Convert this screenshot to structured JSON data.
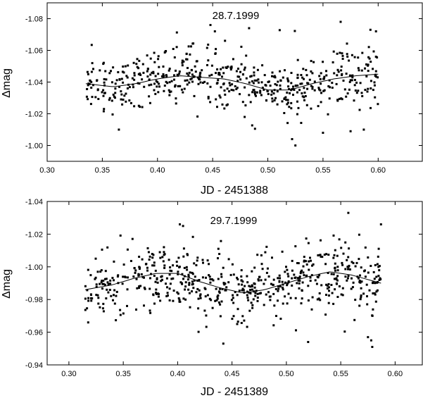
{
  "chart_data": [
    {
      "type": "scatter",
      "title": "28.7.1999",
      "xlabel": "JD - 2451388",
      "ylabel": "Δmag",
      "xlim": [
        0.3,
        0.64
      ],
      "ylim": [
        -0.99,
        -1.09
      ],
      "y_inverted": true,
      "xticks": [
        "0.30",
        "0.35",
        "0.40",
        "0.45",
        "0.50",
        "0.55",
        "0.60"
      ],
      "yticks": [
        "-1.00",
        "-1.02",
        "-1.04",
        "-1.06",
        "-1.08"
      ],
      "xtick_values": [
        0.3,
        0.35,
        0.4,
        0.45,
        0.5,
        0.55,
        0.6
      ],
      "ytick_values": [
        -1.0,
        -1.02,
        -1.04,
        -1.06,
        -1.08
      ],
      "scatter": {
        "x_range": [
          0.335,
          0.6
        ],
        "n_points": 560,
        "spread": 0.009,
        "outliers": [
          [
            0.365,
            -1.01
          ],
          [
            0.448,
            -1.076
          ],
          [
            0.452,
            -1.072
          ],
          [
            0.483,
            -1.074
          ],
          [
            0.522,
            -1.004
          ],
          [
            0.525,
            -1.0
          ],
          [
            0.55,
            -1.008
          ],
          [
            0.566,
            -1.078
          ],
          [
            0.593,
            -1.073
          ],
          [
            0.598,
            -1.072
          ],
          [
            0.587,
            -1.01
          ],
          [
            0.575,
            -1.009
          ]
        ]
      },
      "fit_curve": {
        "x": [
          0.335,
          0.36,
          0.38,
          0.4,
          0.42,
          0.44,
          0.46,
          0.48,
          0.5,
          0.52,
          0.54,
          0.56,
          0.58,
          0.6
        ],
        "y": [
          -1.039,
          -1.037,
          -1.039,
          -1.042,
          -1.044,
          -1.043,
          -1.042,
          -1.039,
          -1.035,
          -1.035,
          -1.039,
          -1.042,
          -1.044,
          -1.045
        ]
      }
    },
    {
      "type": "scatter",
      "title": "29.7.1999",
      "xlabel": "JD - 2451389",
      "ylabel": "Δmag",
      "xlim": [
        0.28,
        0.625
      ],
      "ylim": [
        -0.94,
        -1.04
      ],
      "y_inverted": true,
      "xticks": [
        "0.30",
        "0.35",
        "0.40",
        "0.45",
        "0.50",
        "0.55",
        "0.60"
      ],
      "yticks": [
        "-0.94",
        "-0.96",
        "-0.98",
        "-1.00",
        "-1.02",
        "-1.04"
      ],
      "xtick_values": [
        0.3,
        0.35,
        0.4,
        0.45,
        0.5,
        0.55,
        0.6
      ],
      "ytick_values": [
        -0.94,
        -0.96,
        -0.98,
        -1.0,
        -1.02,
        -1.04
      ],
      "scatter": {
        "x_range": [
          0.315,
          0.587
        ],
        "n_points": 620,
        "spread": 0.01,
        "outliers": [
          [
            0.442,
            -0.953
          ],
          [
            0.578,
            -0.955
          ],
          [
            0.579,
            -0.951
          ],
          [
            0.575,
            -0.957
          ],
          [
            0.557,
            -1.033
          ],
          [
            0.587,
            -1.026
          ],
          [
            0.402,
            -1.026
          ],
          [
            0.405,
            -1.025
          ],
          [
            0.52,
            -0.954
          ]
        ]
      },
      "fit_curve": {
        "x": [
          0.315,
          0.34,
          0.36,
          0.38,
          0.4,
          0.42,
          0.44,
          0.46,
          0.48,
          0.5,
          0.52,
          0.54,
          0.56,
          0.587
        ],
        "y": [
          -0.986,
          -0.989,
          -0.993,
          -0.996,
          -0.996,
          -0.991,
          -0.987,
          -0.984,
          -0.986,
          -0.99,
          -0.994,
          -0.997,
          -0.995,
          -0.99
        ]
      }
    }
  ]
}
